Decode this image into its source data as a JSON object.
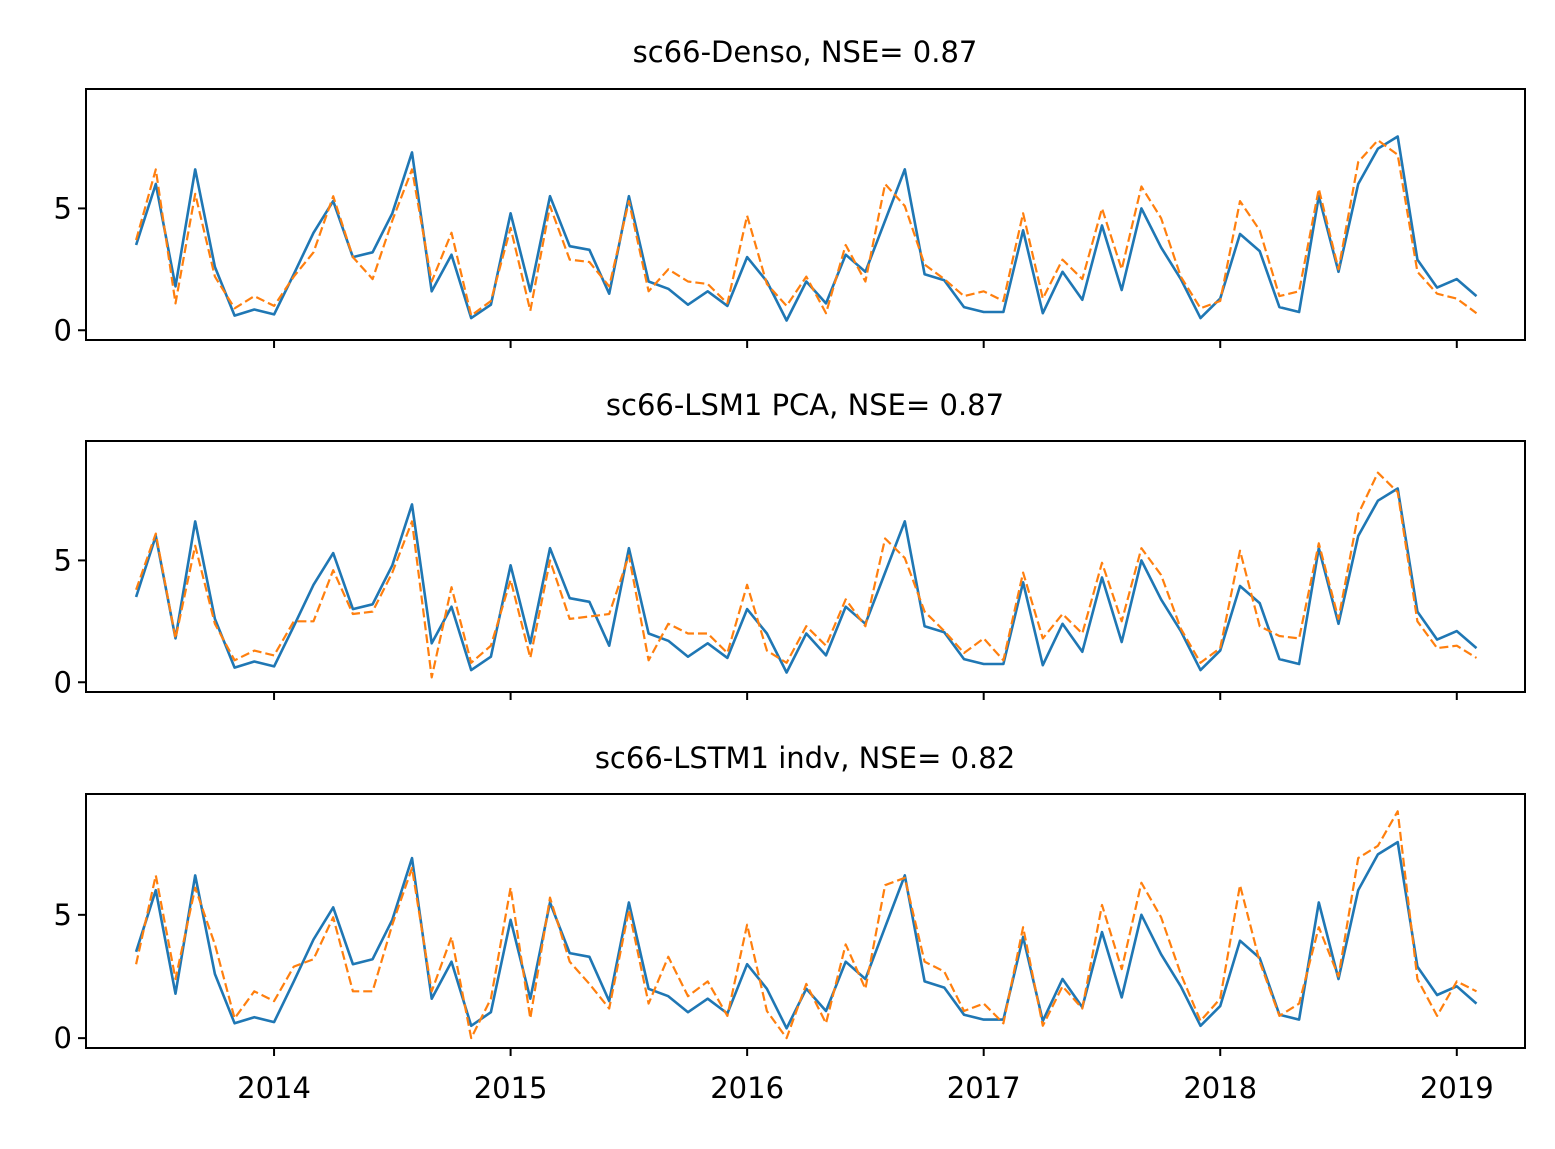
{
  "colors": {
    "observed": "#1f77b4",
    "predicted": "#ff7f0e",
    "axes": "#000000"
  },
  "chart_data": [
    {
      "type": "line",
      "title": "sc66-Denso, NSE= 0.87",
      "xlabel": "",
      "ylabel": "",
      "x_start": "2013-06",
      "x_step": "1 month",
      "xlim": [
        "2013-03-15",
        "2019-04-15"
      ],
      "ylim": [
        -0.4,
        9.9
      ],
      "yticks": [
        "0",
        "5"
      ],
      "xticks": [
        "2014",
        "2015",
        "2016",
        "2017",
        "2018",
        "2019"
      ],
      "xtick_labels_visible": false,
      "series": [
        {
          "style": "solid",
          "color": "#1f77b4",
          "values": [
            3.5,
            6.0,
            1.8,
            6.6,
            2.6,
            0.6,
            0.85,
            0.65,
            2.3,
            4.0,
            5.3,
            3.0,
            3.2,
            4.8,
            7.3,
            1.6,
            3.1,
            0.5,
            1.05,
            4.8,
            1.6,
            5.5,
            3.45,
            3.3,
            1.5,
            5.5,
            2.0,
            1.7,
            1.05,
            1.6,
            1.0,
            3.0,
            2.0,
            0.4,
            2.0,
            1.1,
            3.1,
            2.4,
            4.5,
            6.6,
            2.3,
            2.05,
            0.95,
            0.75,
            0.75,
            4.1,
            0.7,
            2.4,
            1.25,
            4.3,
            1.65,
            5.0,
            3.4,
            2.1,
            0.5,
            1.3,
            3.95,
            3.25,
            0.95,
            0.75,
            5.5,
            2.4,
            6.0,
            7.45,
            7.95,
            2.9,
            1.75,
            2.1,
            1.4
          ]
        },
        {
          "style": "dashed",
          "color": "#ff7f0e",
          "values": [
            3.7,
            6.6,
            1.1,
            5.6,
            2.2,
            0.9,
            1.4,
            1.0,
            2.2,
            3.2,
            5.5,
            3.0,
            2.1,
            4.5,
            6.6,
            2.0,
            4.0,
            0.6,
            1.2,
            4.2,
            0.8,
            5.1,
            2.9,
            2.8,
            1.8,
            5.3,
            1.6,
            2.5,
            2.0,
            1.9,
            1.1,
            4.7,
            1.9,
            1.0,
            2.2,
            0.7,
            3.5,
            2.0,
            6.0,
            5.1,
            2.7,
            2.1,
            1.4,
            1.6,
            1.2,
            4.8,
            1.3,
            2.9,
            2.1,
            5.0,
            2.5,
            5.9,
            4.6,
            2.2,
            0.9,
            1.2,
            5.3,
            4.1,
            1.4,
            1.6,
            5.8,
            2.5,
            6.9,
            7.8,
            7.2,
            2.4,
            1.5,
            1.3,
            0.7
          ]
        }
      ]
    },
    {
      "type": "line",
      "title": "sc66-LSM1 PCA, NSE= 0.87",
      "xlabel": "",
      "ylabel": "",
      "x_start": "2013-06",
      "x_step": "1 month",
      "xlim": [
        "2013-03-15",
        "2019-04-15"
      ],
      "ylim": [
        -0.4,
        9.9
      ],
      "yticks": [
        "0",
        "5"
      ],
      "xticks": [
        "2014",
        "2015",
        "2016",
        "2017",
        "2018",
        "2019"
      ],
      "xtick_labels_visible": false,
      "series": [
        {
          "style": "solid",
          "color": "#1f77b4",
          "values": [
            3.5,
            6.0,
            1.8,
            6.6,
            2.6,
            0.6,
            0.85,
            0.65,
            2.3,
            4.0,
            5.3,
            3.0,
            3.2,
            4.8,
            7.3,
            1.6,
            3.1,
            0.5,
            1.05,
            4.8,
            1.6,
            5.5,
            3.45,
            3.3,
            1.5,
            5.5,
            2.0,
            1.7,
            1.05,
            1.6,
            1.0,
            3.0,
            2.0,
            0.4,
            2.0,
            1.1,
            3.1,
            2.4,
            4.5,
            6.6,
            2.3,
            2.05,
            0.95,
            0.75,
            0.75,
            4.1,
            0.7,
            2.4,
            1.25,
            4.3,
            1.65,
            5.0,
            3.4,
            2.1,
            0.5,
            1.3,
            3.95,
            3.25,
            0.95,
            0.75,
            5.5,
            2.4,
            6.0,
            7.45,
            7.95,
            2.9,
            1.75,
            2.1,
            1.4
          ]
        },
        {
          "style": "dashed",
          "color": "#ff7f0e",
          "values": [
            3.8,
            6.1,
            1.8,
            5.6,
            2.4,
            0.9,
            1.3,
            1.1,
            2.5,
            2.5,
            4.6,
            2.8,
            2.9,
            4.5,
            6.6,
            0.2,
            3.9,
            0.8,
            1.5,
            4.2,
            1.0,
            5.0,
            2.6,
            2.7,
            2.8,
            5.2,
            0.9,
            2.4,
            2.0,
            2.0,
            1.2,
            4.0,
            1.3,
            0.8,
            2.3,
            1.5,
            3.4,
            2.3,
            5.9,
            5.1,
            2.9,
            2.1,
            1.2,
            1.8,
            0.9,
            4.5,
            1.8,
            2.8,
            2.0,
            4.9,
            2.5,
            5.5,
            4.4,
            2.2,
            0.8,
            1.4,
            5.4,
            2.3,
            1.9,
            1.8,
            5.7,
            2.6,
            6.9,
            8.6,
            7.8,
            2.5,
            1.4,
            1.5,
            1.0
          ]
        }
      ]
    },
    {
      "type": "line",
      "title": "sc66-LSTM1 indv, NSE= 0.82",
      "xlabel": "",
      "ylabel": "",
      "x_start": "2013-06",
      "x_step": "1 month",
      "xlim": [
        "2013-03-15",
        "2019-04-15"
      ],
      "ylim": [
        -0.4,
        9.9
      ],
      "yticks": [
        "0",
        "5"
      ],
      "xticks": [
        "2014",
        "2015",
        "2016",
        "2017",
        "2018",
        "2019"
      ],
      "xtick_labels_visible": true,
      "series": [
        {
          "style": "solid",
          "color": "#1f77b4",
          "values": [
            3.5,
            6.0,
            1.8,
            6.6,
            2.6,
            0.6,
            0.85,
            0.65,
            2.3,
            4.0,
            5.3,
            3.0,
            3.2,
            4.8,
            7.3,
            1.6,
            3.1,
            0.5,
            1.05,
            4.8,
            1.6,
            5.5,
            3.45,
            3.3,
            1.5,
            5.5,
            2.0,
            1.7,
            1.05,
            1.6,
            1.0,
            3.0,
            2.0,
            0.4,
            2.0,
            1.1,
            3.1,
            2.4,
            4.5,
            6.6,
            2.3,
            2.05,
            0.95,
            0.75,
            0.75,
            4.1,
            0.7,
            2.4,
            1.25,
            4.3,
            1.65,
            5.0,
            3.4,
            2.1,
            0.5,
            1.3,
            3.95,
            3.25,
            0.95,
            0.75,
            5.5,
            2.4,
            6.0,
            7.45,
            7.95,
            2.9,
            1.75,
            2.1,
            1.4
          ]
        },
        {
          "style": "dashed",
          "color": "#ff7f0e",
          "values": [
            3.0,
            6.6,
            2.4,
            6.1,
            3.8,
            0.8,
            1.9,
            1.5,
            2.9,
            3.2,
            4.9,
            1.9,
            1.9,
            4.6,
            6.9,
            1.9,
            4.1,
            0.0,
            1.6,
            6.1,
            0.8,
            5.7,
            3.1,
            2.2,
            1.2,
            5.2,
            1.4,
            3.3,
            1.7,
            2.3,
            0.9,
            4.6,
            1.1,
            0.0,
            2.2,
            0.6,
            3.8,
            2.0,
            6.2,
            6.5,
            3.1,
            2.7,
            1.1,
            1.4,
            0.6,
            4.5,
            0.5,
            2.1,
            1.2,
            5.4,
            2.8,
            6.3,
            4.9,
            2.6,
            0.7,
            1.6,
            6.2,
            3.1,
            0.9,
            1.4,
            4.5,
            2.5,
            7.3,
            7.8,
            9.2,
            2.4,
            0.9,
            2.3,
            1.9
          ]
        }
      ]
    }
  ]
}
